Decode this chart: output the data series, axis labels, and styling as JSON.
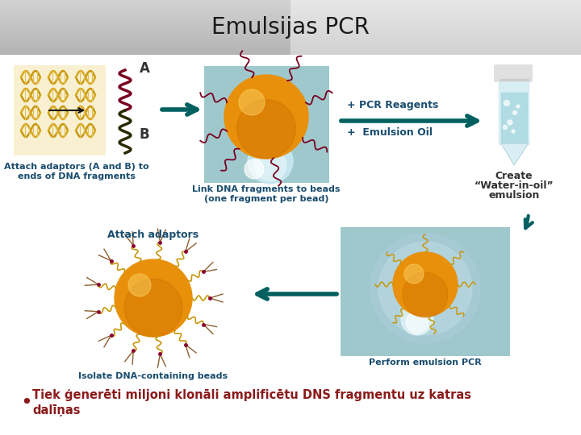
{
  "title": "Emulsijas PCR",
  "title_fontsize": 20,
  "title_color": "#1a1a1a",
  "banner_color": "#c0c0c0",
  "body_color": "#ffffff",
  "label_A": "A",
  "label_B": "B",
  "text_attach_adaptors_title": "Attach adaptors",
  "text_attach_adaptors_body1": "Attach adaptors (A and B) to",
  "text_attach_adaptors_body2": "ends of DNA fragments",
  "text_link1": "Link DNA fragments to beads",
  "text_link2": "(one fragment per bead)",
  "text_pcr_reagents": "+ PCR Reagents",
  "text_emulsion_oil": "+  Emulsion Oil",
  "text_create1": "Create",
  "text_create2": "“Water-in-oil”",
  "text_create3": "emulsion",
  "text_isolate1": "Isolate DNA-containing beads",
  "text_perform": "Perform emulsion PCR",
  "text_bullet": "Tiek ģenerēti miljoni klonāli amplificētu DNS fragmentu uz katras\ndalīņas",
  "text_bullet_color": "#8b1a1a",
  "label_color": "#1a4d6e",
  "arrow_color": "#006060",
  "reagent_label_color": "#1a4d6e",
  "create_color": "#333333",
  "font_caption": 8,
  "font_small": 7.5,
  "bead_color": "#e8900a",
  "bead_highlight": "#f5c04a",
  "strand_color_A": "#7a0020",
  "strand_color_B": "#3a3a00",
  "strand_color_mixed": "#8b6000",
  "glow_color": "#c0e8e8",
  "box_color": "#9ec8cc"
}
